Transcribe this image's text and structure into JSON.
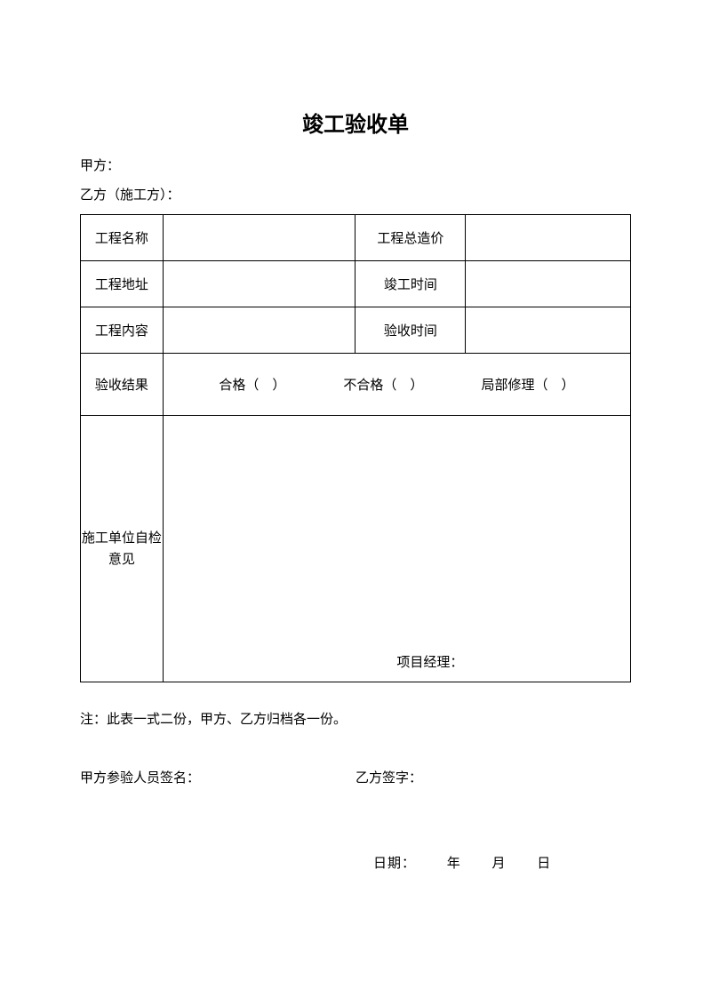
{
  "title": "竣工验收单",
  "party_a": "甲方：",
  "party_b": "乙方（施工方）：",
  "table": {
    "rows": [
      {
        "label1": "工程名称",
        "label2": "工程总造价"
      },
      {
        "label1": "工程地址",
        "label2": "竣工时间"
      },
      {
        "label1": "工程内容",
        "label2": "验收时间"
      }
    ],
    "result_label": "验收结果",
    "result_options": {
      "opt1": "合格（　）",
      "opt2": "不合格（　）",
      "opt3": "局部修理（　）"
    },
    "opinion_label": "施工单位自检意见",
    "pm_label": "项目经理："
  },
  "footer_note": "注：此表一式二份，甲方、乙方归档各一份。",
  "sign_a": "甲方参验人员签名：",
  "sign_b": "乙方签字：",
  "date": {
    "prefix": "日期：",
    "year": "年",
    "month": "月",
    "day": "日"
  }
}
